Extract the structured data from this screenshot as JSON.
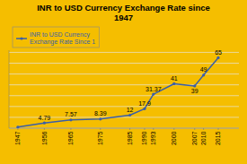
{
  "chart_data": {
    "type": "line",
    "title": "INR to USD Currency Exchange Rate since\n1947",
    "x": [
      1947,
      1956,
      1965,
      1975,
      1985,
      1990,
      1993,
      2000,
      2007,
      2010,
      2015
    ],
    "series": [
      {
        "name": "INR to USD Currency\nExchange Rate Since 1",
        "color": "#3A5EA8",
        "marker": "circle",
        "values": [
          1.0,
          4.79,
          7.57,
          8.39,
          12,
          17.9,
          31.37,
          41,
          39,
          49,
          65
        ],
        "value_labels": [
          null,
          "4.79",
          "7.57",
          "8.39",
          "12",
          "17.9",
          "31.37",
          "41",
          "39",
          "49",
          "65"
        ]
      }
    ],
    "xlim": [
      1944,
      2022
    ],
    "xticks": [
      1947,
      1956,
      1965,
      1975,
      1985,
      1990,
      1993,
      2000,
      2007,
      2010,
      2015
    ],
    "ylim": [
      0,
      72
    ],
    "yticks": [
      0,
      10,
      20,
      30,
      40,
      50,
      60,
      70
    ],
    "grid": true,
    "tick_labels": "x",
    "data_labels": true,
    "legend": "upper left"
  }
}
